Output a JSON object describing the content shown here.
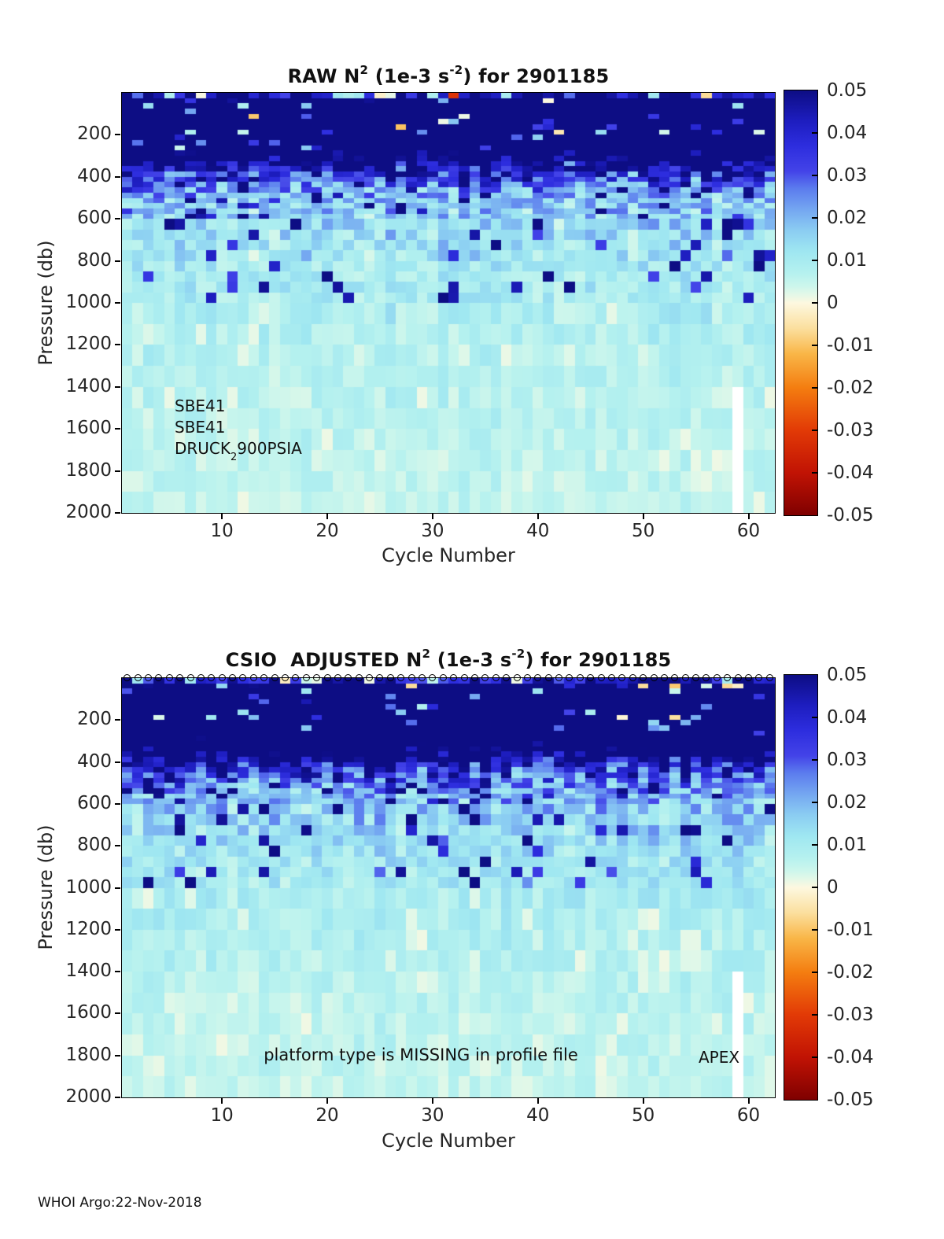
{
  "page": {
    "background": "#ffffff",
    "footer": "WHOI Argo:22-Nov-2018"
  },
  "figures": [
    {
      "id": "raw",
      "title": {
        "prefix": "RAW N",
        "sup1": "2",
        "mid": " (1e-3 s",
        "sup2": "-2",
        "suffix": ") for 2901185"
      },
      "xlabel": "Cycle Number",
      "ylabel": "Pressure (db)",
      "annotations": {
        "line1": "SBE41",
        "line2": "SBE41",
        "line3_prefix": "DRUCK",
        "line3_sub": "2",
        "line3_suffix": "900PSIA"
      }
    },
    {
      "id": "csio-adjusted",
      "title": {
        "prefix": "CSIO  ADJUSTED N",
        "sup1": "2",
        "mid": " (1e-3 s",
        "sup2": "-2",
        "suffix": ") for 2901185"
      },
      "xlabel": "Cycle Number",
      "ylabel": "Pressure (db)",
      "annotations": {
        "center_note": "platform type is MISSING in profile file",
        "right_note": "APEX"
      }
    }
  ],
  "chart_data": [
    {
      "type": "heatmap",
      "title": "RAW N^2 (1e-3 s^-2) for 2901185",
      "xlabel": "Cycle Number",
      "ylabel": "Pressure (db)",
      "x_range": [
        0.5,
        62.5
      ],
      "n_cycles": 62,
      "y_range": [
        0,
        2000
      ],
      "y_axis_reversed": true,
      "x_ticks": [
        10,
        20,
        30,
        40,
        50,
        60
      ],
      "y_ticks": [
        200,
        400,
        600,
        800,
        1000,
        1200,
        1400,
        1600,
        1800,
        2000
      ],
      "grid": false,
      "colorbar": {
        "min": -0.05,
        "max": 0.05,
        "tick_labels": [
          "0.05",
          "0.04",
          "0.03",
          "0.02",
          "0.01",
          "0",
          "-0.01",
          "-0.02",
          "-0.03",
          "-0.04",
          "-0.05"
        ],
        "position": "right"
      },
      "colormap_stops": [
        [
          0.05,
          "#0d0d84"
        ],
        [
          0.043,
          "#1d1dbe"
        ],
        [
          0.037,
          "#2d2dde"
        ],
        [
          0.031,
          "#4343e8"
        ],
        [
          0.027,
          "#5b7bee"
        ],
        [
          0.022,
          "#74a6f1"
        ],
        [
          0.017,
          "#8bcdf2"
        ],
        [
          0.012,
          "#9fe7f1"
        ],
        [
          0.007,
          "#b5f1ef"
        ],
        [
          0.004,
          "#ccf6ec"
        ],
        [
          0.002,
          "#e3f8e8"
        ],
        [
          0.0,
          "#fdf8e0"
        ],
        [
          -0.006,
          "#fbdf9e"
        ],
        [
          -0.012,
          "#f9b647"
        ],
        [
          -0.02,
          "#f47d10"
        ],
        [
          -0.03,
          "#e23a06"
        ],
        [
          -0.04,
          "#c11304"
        ],
        [
          -0.05,
          "#7f0000"
        ]
      ],
      "depth_mean_profile": [
        [
          0,
          0.04
        ],
        [
          30,
          0.058
        ],
        [
          60,
          0.068
        ],
        [
          200,
          0.066
        ],
        [
          260,
          0.054
        ],
        [
          320,
          0.042
        ],
        [
          380,
          0.03
        ],
        [
          440,
          0.024
        ],
        [
          520,
          0.018
        ],
        [
          620,
          0.0145
        ],
        [
          750,
          0.012
        ],
        [
          900,
          0.01
        ],
        [
          1100,
          0.0085
        ],
        [
          1400,
          0.0068
        ],
        [
          1700,
          0.0058
        ],
        [
          2000,
          0.0052
        ]
      ],
      "depth_noise_profile": [
        [
          0,
          0.02
        ],
        [
          60,
          0.006
        ],
        [
          200,
          0.01
        ],
        [
          280,
          0.018
        ],
        [
          400,
          0.014
        ],
        [
          550,
          0.01
        ],
        [
          700,
          0.007
        ],
        [
          900,
          0.005
        ],
        [
          1200,
          0.0035
        ],
        [
          2000,
          0.0025
        ]
      ],
      "thermocline": {
        "base_depth": 280,
        "variation": 170,
        "boost": 0.03
      },
      "speckle": {
        "light_shallow_prob": 0.07,
        "dark_mid_prob": 0.08,
        "pale_deep_prob": 0.06
      },
      "pressure_bins": {
        "fine_to": 600,
        "fine_step": 25,
        "mid_to": 1000,
        "mid_step": 50,
        "coarse_step": 100
      },
      "missing_data": {
        "cycle": 59,
        "pressure_range": [
          1450,
          2000
        ]
      },
      "sensor_labels": [
        "SBE41",
        "SBE41",
        "DRUCK_2900PSIA"
      ],
      "markers_row": false,
      "seed": 1185
    },
    {
      "type": "heatmap",
      "title": "CSIO  ADJUSTED N^2 (1e-3 s^-2) for 2901185",
      "xlabel": "Cycle Number",
      "ylabel": "Pressure (db)",
      "x_range": [
        0.5,
        62.5
      ],
      "n_cycles": 62,
      "y_range": [
        0,
        2000
      ],
      "y_axis_reversed": true,
      "x_ticks": [
        10,
        20,
        30,
        40,
        50,
        60
      ],
      "y_ticks": [
        200,
        400,
        600,
        800,
        1000,
        1200,
        1400,
        1600,
        1800,
        2000
      ],
      "grid": false,
      "colorbar": {
        "min": -0.05,
        "max": 0.05,
        "tick_labels": [
          "0.05",
          "0.04",
          "0.03",
          "0.02",
          "0.01",
          "0",
          "-0.01",
          "-0.02",
          "-0.03",
          "-0.04",
          "-0.05"
        ],
        "position": "right"
      },
      "colormap_stops": [
        [
          0.05,
          "#0d0d84"
        ],
        [
          0.043,
          "#1d1dbe"
        ],
        [
          0.037,
          "#2d2dde"
        ],
        [
          0.031,
          "#4343e8"
        ],
        [
          0.027,
          "#5b7bee"
        ],
        [
          0.022,
          "#74a6f1"
        ],
        [
          0.017,
          "#8bcdf2"
        ],
        [
          0.012,
          "#9fe7f1"
        ],
        [
          0.007,
          "#b5f1ef"
        ],
        [
          0.004,
          "#ccf6ec"
        ],
        [
          0.002,
          "#e3f8e8"
        ],
        [
          0.0,
          "#fdf8e0"
        ],
        [
          -0.006,
          "#fbdf9e"
        ],
        [
          -0.012,
          "#f9b647"
        ],
        [
          -0.02,
          "#f47d10"
        ],
        [
          -0.03,
          "#e23a06"
        ],
        [
          -0.04,
          "#c11304"
        ],
        [
          -0.05,
          "#7f0000"
        ]
      ],
      "depth_mean_profile": [
        [
          0,
          0.04
        ],
        [
          30,
          0.058
        ],
        [
          60,
          0.068
        ],
        [
          200,
          0.066
        ],
        [
          280,
          0.056
        ],
        [
          340,
          0.045
        ],
        [
          400,
          0.034
        ],
        [
          460,
          0.026
        ],
        [
          540,
          0.02
        ],
        [
          640,
          0.016
        ],
        [
          780,
          0.013
        ],
        [
          900,
          0.011
        ],
        [
          1100,
          0.009
        ],
        [
          1400,
          0.007
        ],
        [
          1700,
          0.006
        ],
        [
          2000,
          0.0052
        ]
      ],
      "depth_noise_profile": [
        [
          0,
          0.02
        ],
        [
          60,
          0.006
        ],
        [
          200,
          0.01
        ],
        [
          280,
          0.018
        ],
        [
          400,
          0.015
        ],
        [
          550,
          0.011
        ],
        [
          700,
          0.008
        ],
        [
          900,
          0.0055
        ],
        [
          1200,
          0.0038
        ],
        [
          2000,
          0.0026
        ]
      ],
      "thermocline": {
        "base_depth": 330,
        "variation": 190,
        "boost": 0.032
      },
      "speckle": {
        "light_shallow_prob": 0.07,
        "dark_mid_prob": 0.11,
        "pale_deep_prob": 0.06
      },
      "pressure_bins": {
        "fine_to": 600,
        "fine_step": 25,
        "mid_to": 1000,
        "mid_step": 50,
        "coarse_step": 100
      },
      "missing_data": {
        "cycle": 59,
        "pressure_range": [
          1450,
          2000
        ]
      },
      "platform_note": "platform type is MISSING in profile file",
      "platform_type_label": "APEX",
      "markers_row": true,
      "markers_count": 62,
      "markers_description": "open circle marker at top edge for every cycle",
      "seed": 2901
    }
  ]
}
